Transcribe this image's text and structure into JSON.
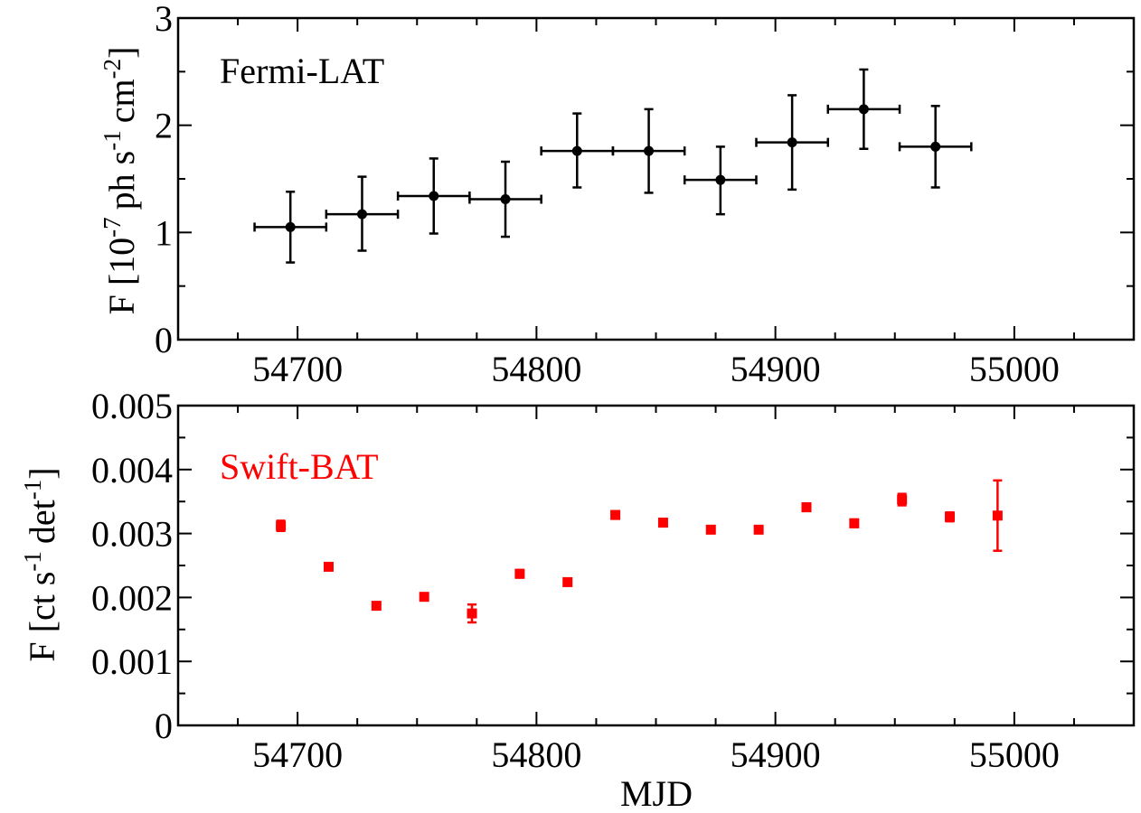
{
  "chart_data": [
    {
      "type": "scatter",
      "annotation": "Fermi-LAT",
      "xlabel": "",
      "ylabel": "F [10^-7 ph s^-1 cm^-2]",
      "ylabel_parts": {
        "prefix": "F [10",
        "exp1": "-7",
        "mid1": "ph s",
        "exp2": "-1",
        "mid2": "cm",
        "exp3": "-2",
        "suffix": "]"
      },
      "xlim": [
        54650,
        55050
      ],
      "ylim": [
        0,
        3
      ],
      "xticks": [
        54700,
        54800,
        54900,
        55000
      ],
      "yticks": [
        0,
        1,
        2,
        3
      ],
      "color": "#000000",
      "marker": "circle",
      "series": [
        {
          "x": [
            54697,
            54727,
            54757,
            54787,
            54817,
            54847,
            54877,
            54907,
            54937,
            54967
          ],
          "xerr": [
            15,
            15,
            15,
            15,
            15,
            15,
            15,
            15,
            15,
            15
          ],
          "y": [
            1.05,
            1.17,
            1.34,
            1.31,
            1.76,
            1.76,
            1.49,
            1.84,
            2.15,
            1.8
          ],
          "yerr_low": [
            0.33,
            0.34,
            0.35,
            0.35,
            0.34,
            0.39,
            0.32,
            0.44,
            0.37,
            0.38
          ],
          "yerr_high": [
            0.33,
            0.35,
            0.35,
            0.35,
            0.35,
            0.39,
            0.31,
            0.44,
            0.37,
            0.38
          ]
        }
      ]
    },
    {
      "type": "scatter",
      "annotation": "Swift-BAT",
      "xlabel": "MJD",
      "ylabel": "F [ct s^-1 det^-1]",
      "ylabel_parts": {
        "prefix": "F [ct s",
        "exp1": "-1",
        "mid1": "det",
        "exp2": "-1",
        "suffix": "]"
      },
      "xlim": [
        54650,
        55050
      ],
      "ylim": [
        0,
        0.005
      ],
      "xticks": [
        54700,
        54800,
        54900,
        55000
      ],
      "yticks": [
        0,
        0.001,
        0.002,
        0.003,
        0.004,
        0.005
      ],
      "ytick_labels": [
        "0",
        "0.001",
        "0.002",
        "0.003",
        "0.004",
        "0.005"
      ],
      "color": "#ff0000",
      "marker": "square",
      "series": [
        {
          "x": [
            54693,
            54713,
            54733,
            54753,
            54773,
            54793,
            54813,
            54833,
            54853,
            54873,
            54893,
            54913,
            54933,
            54953,
            54973,
            54993
          ],
          "y": [
            0.00312,
            0.00248,
            0.00187,
            0.00201,
            0.00175,
            0.00237,
            0.00224,
            0.00329,
            0.00317,
            0.00306,
            0.00306,
            0.00341,
            0.00316,
            0.00353,
            0.00326,
            0.00328
          ],
          "yerr": [
            8e-05,
            4e-05,
            5e-05,
            5e-05,
            0.00014,
            6e-05,
            5e-05,
            6e-05,
            6e-05,
            5e-05,
            5e-05,
            6e-05,
            6e-05,
            9e-05,
            7e-05,
            0.00055
          ]
        }
      ]
    }
  ]
}
